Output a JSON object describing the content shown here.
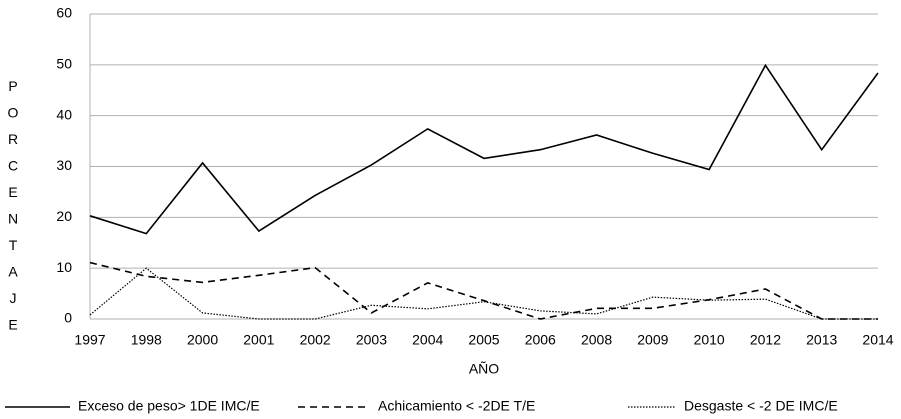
{
  "chart_data": {
    "type": "line",
    "x_label": "AÑO",
    "y_label": "PORCENTAJE",
    "categories": [
      "1997",
      "1998",
      "2000",
      "2001",
      "2002",
      "2003",
      "2004",
      "2005",
      "2006",
      "2008",
      "2009",
      "2010",
      "2012",
      "2013",
      "2014"
    ],
    "series": [
      {
        "name": "Exceso de peso> 1DE IMC/E",
        "color": "#000000",
        "dash": "solid",
        "values": [
          20.3,
          16.8,
          30.7,
          17.3,
          24.3,
          30.3,
          37.4,
          31.6,
          33.3,
          36.2,
          32.6,
          29.4,
          49.9,
          33.3,
          48.4
        ]
      },
      {
        "name": "Achicamiento < -2DE T/E",
        "color": "#000000",
        "dash": "dashed",
        "values": [
          11.1,
          8.4,
          7.2,
          8.6,
          10.1,
          1.2,
          7.1,
          3.6,
          0,
          2.1,
          2.1,
          3.8,
          5.9,
          0,
          0
        ]
      },
      {
        "name": "Desgaste < -2 DE IMC/E",
        "color": "#000000",
        "dash": "dotted",
        "values": [
          0.8,
          10.0,
          1.2,
          0,
          0,
          2.7,
          2.0,
          3.4,
          1.6,
          1.0,
          4.3,
          3.7,
          3.9,
          0,
          0
        ]
      }
    ],
    "ylim": [
      0,
      60
    ],
    "yticks": [
      0,
      10,
      20,
      30,
      40,
      50,
      60
    ],
    "grid": true,
    "legend": "bottom"
  }
}
